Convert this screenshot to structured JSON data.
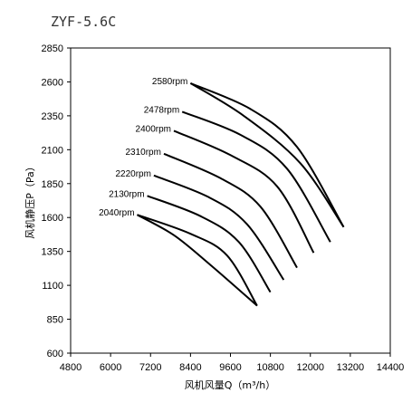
{
  "chart_data": {
    "type": "line",
    "title": "ZYF-5.6C",
    "xlabel": "风机风量Q（m³/h）",
    "ylabel": "风机静压P（Pa）",
    "xlim": [
      4800,
      14400
    ],
    "ylim": [
      600,
      2850
    ],
    "xticks": [
      "4800",
      "6000",
      "7200",
      "8400",
      "9600",
      "10800",
      "12000",
      "13200",
      "14400"
    ],
    "yticks": [
      "600",
      "850",
      "1100",
      "1350",
      "1600",
      "1850",
      "2100",
      "2350",
      "2600",
      "2850"
    ],
    "grid": false,
    "series": [
      {
        "name": "2580rpm",
        "x": [
          8400,
          10200,
          11600,
          13000
        ],
        "y": [
          2590,
          2400,
          2120,
          1530
        ]
      },
      {
        "name": "2478rpm",
        "x": [
          8150,
          9900,
          11300,
          12600
        ],
        "y": [
          2380,
          2210,
          1960,
          1420
        ]
      },
      {
        "name": "2400rpm",
        "x": [
          7900,
          9600,
          11000,
          12100
        ],
        "y": [
          2240,
          2060,
          1830,
          1340
        ]
      },
      {
        "name": "2310rpm",
        "x": [
          7600,
          9300,
          10500,
          11600
        ],
        "y": [
          2070,
          1890,
          1680,
          1230
        ]
      },
      {
        "name": "2220rpm",
        "x": [
          7300,
          8950,
          10100,
          11200
        ],
        "y": [
          1910,
          1750,
          1550,
          1140
        ]
      },
      {
        "name": "2130rpm",
        "x": [
          7100,
          8700,
          9850,
          10800
        ],
        "y": [
          1760,
          1610,
          1420,
          1050
        ]
      },
      {
        "name": "2040rpm",
        "x": [
          6800,
          8400,
          9500,
          10400
        ],
        "y": [
          1620,
          1480,
          1320,
          950
        ]
      }
    ],
    "boundary_low": {
      "x": [
        6800,
        7900,
        9000,
        10400
      ],
      "y": [
        1620,
        1470,
        1250,
        950
      ]
    },
    "boundary_high": {
      "x": [
        8400,
        10000,
        11700,
        13000
      ],
      "y": [
        2590,
        2350,
        2000,
        1530
      ]
    }
  }
}
